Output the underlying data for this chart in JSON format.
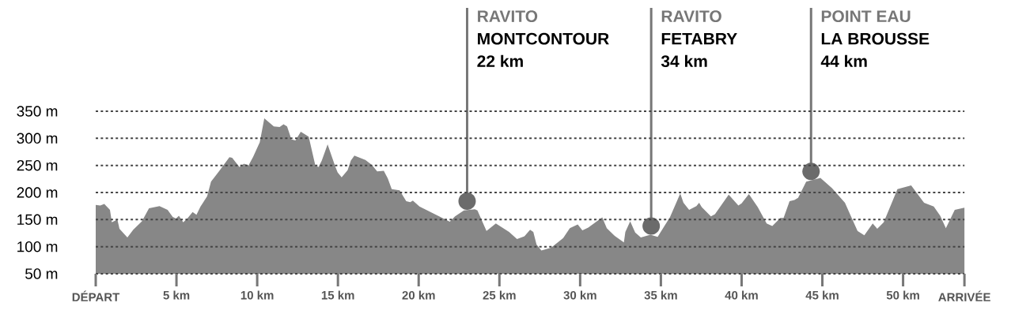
{
  "chart_data": {
    "type": "area",
    "color": "#878787",
    "x": [
      0,
      0.28,
      0.53,
      0.88,
      1.0,
      1.34,
      1.47,
      1.96,
      2.32,
      2.86,
      3.3,
      3.95,
      4.45,
      4.77,
      4.97,
      5.15,
      5.42,
      5.67,
      6.0,
      6.24,
      6.49,
      6.9,
      7.14,
      7.63,
      8.28,
      8.45,
      8.9,
      9.18,
      9.46,
      9.75,
      10.16,
      10.44,
      11.03,
      11.39,
      11.63,
      11.85,
      12.12,
      12.37,
      12.7,
      13.19,
      13.6,
      13.8,
      14.0,
      14.36,
      14.82,
      14.98,
      15.23,
      15.6,
      15.8,
      16.02,
      16.7,
      17.1,
      17.43,
      17.84,
      18.09,
      18.33,
      18.82,
      19.23,
      19.48,
      19.64,
      20.05,
      21.93,
      22.25,
      22.8,
      23.48,
      23.64,
      24.2,
      24.78,
      25.6,
      26.09,
      26.55,
      26.9,
      27.1,
      27.3,
      27.6,
      28.2,
      28.95,
      29.36,
      29.85,
      30.14,
      30.5,
      31.37,
      31.65,
      32.14,
      32.71,
      32.8,
      33.1,
      33.41,
      33.76,
      34.35,
      34.8,
      35.57,
      36.2,
      36.4,
      36.75,
      37.2,
      37.37,
      37.53,
      38.1,
      38.35,
      39.2,
      39.8,
      40.0,
      40.45,
      41.0,
      41.55,
      41.9,
      42.4,
      42.6,
      42.97,
      43.27,
      43.5,
      44.0,
      44.35,
      44.88,
      45.6,
      46.4,
      46.85,
      47.18,
      47.6,
      48.12,
      48.4,
      48.8,
      49.65,
      50.5,
      51.3,
      51.9,
      52.3,
      52.65,
      53.2,
      53.8
    ],
    "values": [
      177,
      176,
      179,
      168,
      145,
      150,
      133,
      117,
      131,
      147,
      171,
      175,
      168,
      155,
      152,
      157,
      145,
      152,
      164,
      159,
      174,
      193,
      220,
      239,
      265,
      264,
      247,
      253,
      250,
      266,
      293,
      337,
      322,
      321,
      326,
      322,
      298,
      296,
      312,
      303,
      250,
      247,
      259,
      289,
      249,
      237,
      228,
      241,
      259,
      268,
      260,
      251,
      239,
      240,
      226,
      206,
      204,
      184,
      182,
      185,
      174,
      146,
      156,
      167,
      169,
      167,
      129,
      143,
      127,
      114,
      119,
      131,
      127,
      104,
      93,
      98,
      116,
      134,
      141,
      130,
      135,
      154,
      134,
      120,
      108,
      127,
      147,
      126,
      117,
      122,
      118,
      155,
      198,
      181,
      168,
      175,
      181,
      173,
      156,
      160,
      196,
      176,
      180,
      197,
      173,
      143,
      138,
      153,
      153,
      184,
      186,
      190,
      220,
      null,
      227,
      208,
      181,
      151,
      129,
      121,
      143,
      133,
      145,
      206,
      213,
      181,
      174,
      157,
      134,
      168,
      172
    ],
    "xlim": [
      0,
      53.8
    ],
    "ylim": [
      50,
      350
    ],
    "xticks": [
      {
        "value": 0,
        "label": "DÉPART"
      },
      {
        "value": 5,
        "label": "5 km"
      },
      {
        "value": 10,
        "label": "10 km"
      },
      {
        "value": 15,
        "label": "15 km"
      },
      {
        "value": 20,
        "label": "20 km"
      },
      {
        "value": 25,
        "label": "25 km"
      },
      {
        "value": 30,
        "label": "30 km"
      },
      {
        "value": 35,
        "label": "35 km"
      },
      {
        "value": 40,
        "label": "40 km"
      },
      {
        "value": 45,
        "label": "45 km"
      },
      {
        "value": 50,
        "label": "50 km"
      },
      {
        "value": 53.8,
        "label": "ARRIVÉE"
      }
    ],
    "yticks": [
      {
        "value": 50,
        "label": "50 m"
      },
      {
        "value": 100,
        "label": "100 m"
      },
      {
        "value": 150,
        "label": "150 m"
      },
      {
        "value": 200,
        "label": "200 m"
      },
      {
        "value": 250,
        "label": "250 m"
      },
      {
        "value": 300,
        "label": "300 m"
      },
      {
        "value": 350,
        "label": "350 m"
      }
    ],
    "grid": "y",
    "annotations": [
      {
        "text": "RAVITO",
        "x": 23,
        "y": 184
      },
      "MONTCONTOUR",
      "22 km",
      {
        "text": "RAVITO",
        "x": 34.4,
        "y": 138
      },
      "FETABRY",
      "34 km",
      {
        "text": "POINT EAU",
        "x": 44.3,
        "y": 239
      },
      "LA BROUSSE",
      "44 km"
    ]
  }
}
